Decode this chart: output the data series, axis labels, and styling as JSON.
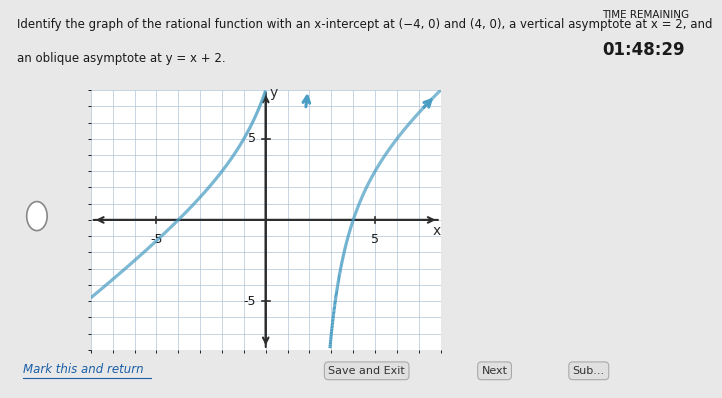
{
  "xlim": [
    -8,
    8
  ],
  "ylim": [
    -8,
    8
  ],
  "grid_color": "#b0c4d8",
  "axis_color": "#2d2d2d",
  "curve_color": "#4a9ec4",
  "curve_linewidth": 2.2,
  "vertical_asymptote_x": 2,
  "background_color": "#e8e8e8",
  "plot_bg": "#ffffff",
  "text_color": "#1a1a1a",
  "fig_width": 6.73,
  "fig_height": 3.82,
  "line1": "Identify the graph of the rational function with an x-intercept at (−4, 0) and (4, 0), a vertical asymptote at x = 2, and",
  "line2": "an oblique asymptote at y = x + 2.",
  "timer_label": "TIME REMAINING",
  "timer_value": "01:48:29",
  "btn_mark": "Mark this and return",
  "btn_save": "Save and Exit",
  "btn_next": "Next"
}
